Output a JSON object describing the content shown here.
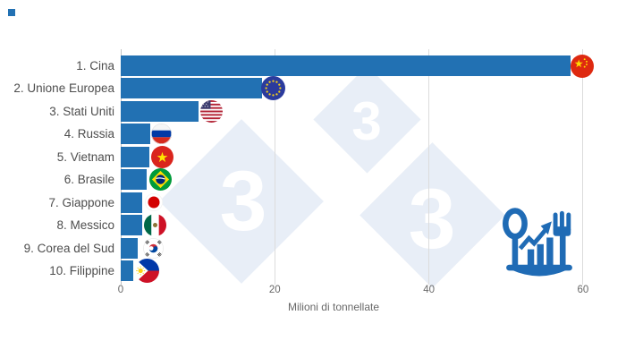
{
  "chart_data": {
    "type": "bar",
    "orientation": "horizontal",
    "categories": [
      "1. Cina",
      "2. Unione Europea",
      "3. Stati Uniti",
      "4. Russia",
      "5. Vietnam",
      "6. Brasile",
      "7. Giappone",
      "8. Messico",
      "9. Corea del Sud",
      "10. Filippine"
    ],
    "values": [
      58.4,
      18.3,
      10.1,
      3.8,
      3.7,
      3.4,
      2.8,
      2.8,
      2.2,
      1.6
    ],
    "flags": [
      "china",
      "european-union",
      "united-states",
      "russia",
      "vietnam",
      "brazil",
      "japan",
      "mexico",
      "south-korea",
      "philippines"
    ],
    "xlabel": "Milioni di tonnellate",
    "x_ticks": [
      0,
      20,
      40,
      60
    ],
    "xlim": [
      0,
      65
    ],
    "grid": true,
    "legend": null,
    "bar_color": "#2271b3",
    "gridline_color": "#dcdcdc",
    "axis_line_color": "#c4c4c4",
    "label_color": "#4d4d4d",
    "tick_color": "#686868"
  },
  "watermark": {
    "threes": [
      "3",
      "3",
      "3"
    ],
    "diamond_color": "#e8eef7",
    "text_color": "#ffffff"
  },
  "footer_icon": {
    "name": "consumption-trend-icon",
    "color": "#1f6bb5"
  },
  "corner_marker": {
    "color": "#2271b3"
  }
}
